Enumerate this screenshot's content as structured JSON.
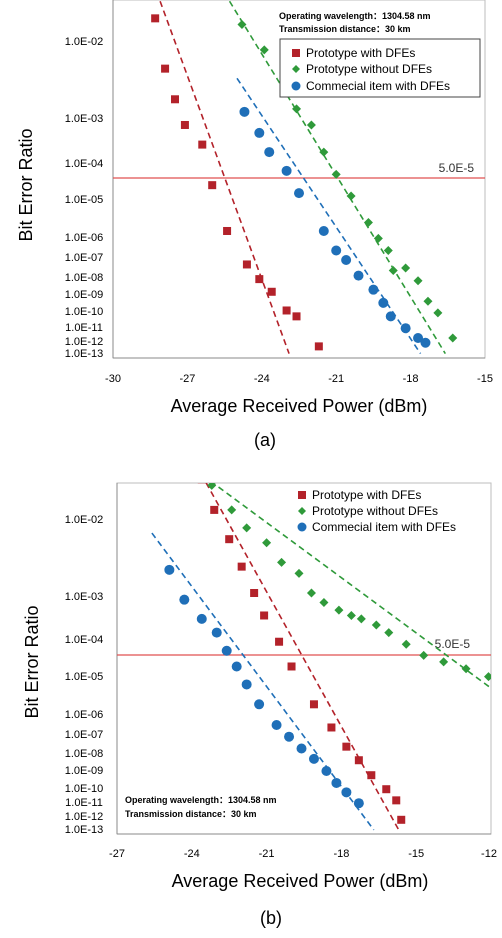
{
  "colors": {
    "proto_dfe": "#b3222a",
    "proto_nodfe": "#2f9a3a",
    "commercial": "#1f6fb8",
    "threshold": "#e05050"
  },
  "chart_data": [
    {
      "type": "scatter",
      "panel_label": "(a)",
      "xlabel": "Average Received Power (dBm)",
      "ylabel": "Bit Error Ratio",
      "xlim": [
        -30,
        -15
      ],
      "x_ticks": [
        "-30",
        "-27",
        "-24",
        "-21",
        "-18",
        "-15"
      ],
      "y_ticks": [
        "1.0E-02",
        "1.0E-03",
        "1.0E-04",
        "1.0E-05",
        "1.0E-06",
        "1.0E-07",
        "1.0E-08",
        "1.0E-09",
        "1.0E-10",
        "1.0E-11",
        "1.0E-12",
        "1.0E-13"
      ],
      "threshold_label": "5.0E-5",
      "annotation": [
        "Operating wavelength：1304.58 nm",
        "Transmission distance：30 km"
      ],
      "legend_position": "top-right",
      "series": [
        {
          "name": "Prototype with DFEs",
          "marker": "square",
          "color_key": "proto_dfe",
          "points": [
            [
              -28.3,
              "1.8E-2"
            ],
            [
              -27.9,
              "4E-3"
            ],
            [
              -27.5,
              "1.6E-3"
            ],
            [
              -27.1,
              "6E-4"
            ],
            [
              -26.4,
              "2.2E-4"
            ],
            [
              -26.0,
              "2E-5"
            ],
            [
              -25.4,
              "1.2E-6"
            ],
            [
              -24.6,
              "3E-8"
            ],
            [
              -24.1,
              "5E-9"
            ],
            [
              -23.6,
              "9E-10"
            ],
            [
              -23.0,
              "7E-11"
            ],
            [
              -22.6,
              "3E-11"
            ],
            [
              -21.7,
              "2E-13"
            ]
          ],
          "fit_line": [
            [
              -28.1,
              "3E-2"
            ],
            [
              -22.9,
              "5E-14"
            ]
          ]
        },
        {
          "name": "Prototype without DFEs",
          "marker": "diamond",
          "color_key": "proto_nodfe",
          "points": [
            [
              -24.8,
              "1.5E-2"
            ],
            [
              -23.9,
              "7E-3"
            ],
            [
              -23.1,
              "3E-3"
            ],
            [
              -22.6,
              "1.2E-3"
            ],
            [
              -22.0,
              "6E-4"
            ],
            [
              -21.5,
              "1.5E-4"
            ],
            [
              -21.0,
              "4E-5"
            ],
            [
              -20.4,
              "1E-5"
            ],
            [
              -19.7,
              "2E-6"
            ],
            [
              -19.3,
              "6E-7"
            ],
            [
              -18.9,
              "1.5E-7"
            ],
            [
              -18.2,
              "2E-8"
            ],
            [
              -18.7,
              "1.5E-8"
            ],
            [
              -17.7,
              "4E-9"
            ],
            [
              -17.3,
              "2.5E-10"
            ],
            [
              -16.9,
              "5E-11"
            ],
            [
              -16.3,
              "1E-12"
            ]
          ],
          "fit_line": [
            [
              -25.3,
              "3E-2"
            ],
            [
              -16.6,
              "5E-14"
            ]
          ]
        },
        {
          "name": "Commecial item with DFEs",
          "marker": "circle",
          "color_key": "commercial",
          "points": [
            [
              -24.7,
              "1.1E-3"
            ],
            [
              -24.1,
              "4E-4"
            ],
            [
              -23.7,
              "1.5E-4"
            ],
            [
              -23.0,
              "5E-5"
            ],
            [
              -22.5,
              "1.2E-5"
            ],
            [
              -21.5,
              "1.2E-6"
            ],
            [
              -21.0,
              "1.5E-7"
            ],
            [
              -20.6,
              "5E-8"
            ],
            [
              -20.1,
              "8E-9"
            ],
            [
              -19.5,
              "1.2E-9"
            ],
            [
              -19.1,
              "2E-10"
            ],
            [
              -18.8,
              "3E-11"
            ],
            [
              -18.2,
              "5E-12"
            ],
            [
              -17.7,
              "1E-12"
            ],
            [
              -17.4,
              "4E-13"
            ]
          ],
          "fit_line": [
            [
              -25.0,
              "3E-3"
            ],
            [
              -17.6,
              "5E-14"
            ]
          ]
        }
      ]
    },
    {
      "type": "scatter",
      "panel_label": "(b)",
      "xlabel": "Average Received Power (dBm)",
      "ylabel": "Bit Error Ratio",
      "xlim": [
        -27,
        -12
      ],
      "x_ticks": [
        "-27",
        "-24",
        "-21",
        "-18",
        "-15",
        "-12"
      ],
      "y_ticks": [
        "1.0E-02",
        "1.0E-03",
        "1.0E-04",
        "1.0E-05",
        "1.0E-06",
        "1.0E-07",
        "1.0E-08",
        "1.0E-09",
        "1.0E-10",
        "1.0E-11",
        "1.0E-12",
        "1.0E-13"
      ],
      "threshold_label": "5.0E-5",
      "annotation": [
        "Operating wavelength：1304.58 nm",
        "Transmission distance：30 km"
      ],
      "legend_position": "top-right",
      "series": [
        {
          "name": "Prototype with DFEs",
          "marker": "square",
          "color_key": "proto_dfe",
          "points": [
            [
              -23.6,
              "3E-2"
            ],
            [
              -23.1,
              "1.2E-2"
            ],
            [
              -22.5,
              "5E-3"
            ],
            [
              -22.0,
              "2.2E-3"
            ],
            [
              -21.5,
              "1E-3"
            ],
            [
              -21.1,
              "3E-4"
            ],
            [
              -20.5,
              "7E-5"
            ],
            [
              -20.0,
              "1.5E-5"
            ],
            [
              -19.1,
              "1.5E-6"
            ],
            [
              -18.4,
              "1.5E-7"
            ],
            [
              -17.8,
              "1.5E-8"
            ],
            [
              -17.3,
              "2.5E-9"
            ],
            [
              -16.8,
              "3.5E-10"
            ],
            [
              -16.2,
              "5E-11"
            ],
            [
              -15.8,
              "8E-12"
            ],
            [
              -15.6,
              "3E-13"
            ]
          ],
          "fit_line": [
            [
              -24.4,
              "1E-1"
            ],
            [
              -15.7,
              "5E-14"
            ]
          ]
        },
        {
          "name": "Prototype without DFEs",
          "marker": "diamond",
          "color_key": "proto_nodfe",
          "points": [
            [
              -23.2,
              "2.5E-2"
            ],
            [
              -22.4,
              "1.2E-2"
            ],
            [
              -21.8,
              "7E-3"
            ],
            [
              -21.0,
              "4.5E-3"
            ],
            [
              -20.4,
              "2.5E-3"
            ],
            [
              -19.7,
              "1.8E-3"
            ],
            [
              -19.2,
              "1E-3"
            ],
            [
              -18.7,
              "6E-4"
            ],
            [
              -18.1,
              "4E-4"
            ],
            [
              -17.6,
              "3E-4"
            ],
            [
              -17.2,
              "2.5E-4"
            ],
            [
              -16.6,
              "1.8E-4"
            ],
            [
              -16.1,
              "1.2E-4"
            ],
            [
              -15.4,
              "6E-5"
            ],
            [
              -14.7,
              "3E-5"
            ],
            [
              -13.9,
              "2E-5"
            ],
            [
              -13.0,
              "1.3E-5"
            ],
            [
              -12.1,
              "8E-6"
            ]
          ],
          "fit_line": [
            [
              -26.8,
              "2E-1"
            ],
            [
              -12.0,
              "4E-6"
            ]
          ]
        },
        {
          "name": "Commecial item with DFEs",
          "marker": "circle",
          "color_key": "commercial",
          "points": [
            [
              -24.9,
              "2E-3"
            ],
            [
              -24.3,
              "7E-4"
            ],
            [
              -23.6,
              "2.5E-4"
            ],
            [
              -23.0,
              "1.2E-4"
            ],
            [
              -22.6,
              "4E-5"
            ],
            [
              -22.2,
              "1.5E-5"
            ],
            [
              -21.8,
              "5E-6"
            ],
            [
              -21.3,
              "1.5E-6"
            ],
            [
              -20.6,
              "2E-7"
            ],
            [
              -20.1,
              "5E-8"
            ],
            [
              -19.6,
              "1.2E-8"
            ],
            [
              -19.1,
              "3E-9"
            ],
            [
              -18.6,
              "6E-10"
            ],
            [
              -18.2,
              "1.3E-10"
            ],
            [
              -17.8,
              "3E-11"
            ],
            [
              -17.3,
              "5E-12"
            ]
          ],
          "fit_line": [
            [
              -25.6,
              "6E-3"
            ],
            [
              -16.7,
              "5E-14"
            ]
          ]
        }
      ]
    }
  ]
}
